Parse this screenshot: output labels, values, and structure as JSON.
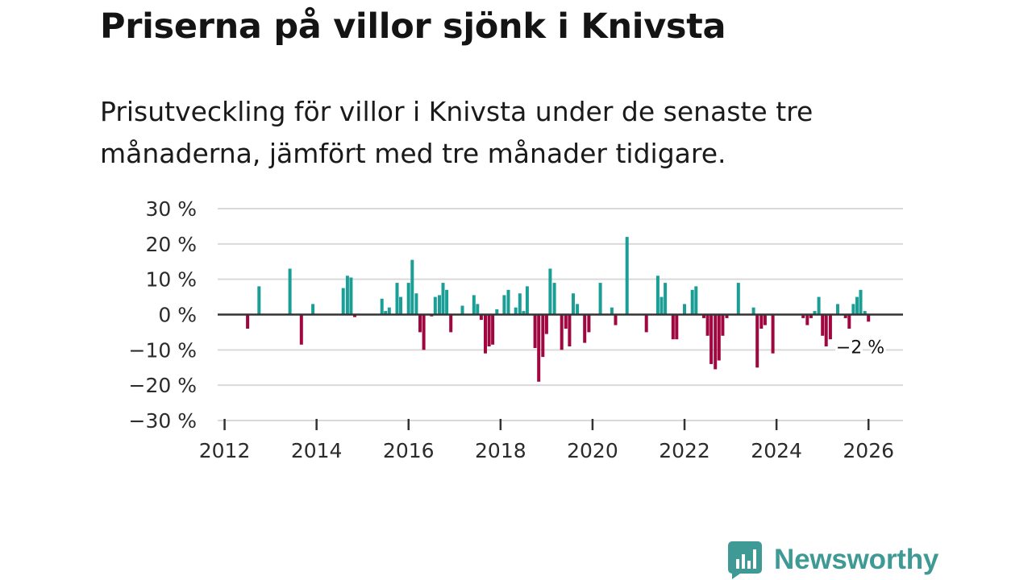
{
  "header": {
    "title": "Priserna på villor sjönk i Knivsta",
    "subtitle": "Prisutveckling för villor i Knivsta under de senaste tre månaderna, jämfört med tre månader tidigare."
  },
  "colors": {
    "positive": "#1a9e96",
    "negative": "#a0063f",
    "grid": "#d9d9d9",
    "zero_line": "#333333",
    "logo": "#3f9a96"
  },
  "logo": {
    "text": "Newsworthy",
    "icon": "chart-bubble-icon"
  },
  "chart_data": {
    "type": "bar",
    "title": "Priserna på villor sjönk i Knivsta",
    "xlabel": "",
    "ylabel": "",
    "ylim": [
      -30,
      30
    ],
    "xlim": [
      2011.85,
      2026.75
    ],
    "y_ticks": [
      30,
      20,
      10,
      0,
      -10,
      -20,
      -30
    ],
    "y_tick_labels": [
      "30 %",
      "20 %",
      "10 %",
      "0 %",
      "−10 %",
      "−20 %",
      "−30 %"
    ],
    "x_ticks": [
      2012,
      2014,
      2016,
      2018,
      2020,
      2022,
      2024,
      2026
    ],
    "x_tick_labels": [
      "2012",
      "2014",
      "2016",
      "2018",
      "2020",
      "2022",
      "2024",
      "2026"
    ],
    "grid": true,
    "last_value_label": "−2 %",
    "series": [
      {
        "name": "Prisutveckling",
        "points": [
          {
            "x": 2012.5,
            "y": -4
          },
          {
            "x": 2012.75,
            "y": 8
          },
          {
            "x": 2013.42,
            "y": 13
          },
          {
            "x": 2013.67,
            "y": -8.5
          },
          {
            "x": 2013.92,
            "y": 3
          },
          {
            "x": 2014.58,
            "y": 7.5
          },
          {
            "x": 2014.67,
            "y": 11
          },
          {
            "x": 2014.75,
            "y": 10.5
          },
          {
            "x": 2014.83,
            "y": -0.7
          },
          {
            "x": 2015.42,
            "y": 4.5
          },
          {
            "x": 2015.5,
            "y": 1
          },
          {
            "x": 2015.58,
            "y": 2
          },
          {
            "x": 2015.75,
            "y": 9
          },
          {
            "x": 2015.83,
            "y": 5
          },
          {
            "x": 2016.0,
            "y": 9
          },
          {
            "x": 2016.08,
            "y": 15.5
          },
          {
            "x": 2016.17,
            "y": 6
          },
          {
            "x": 2016.25,
            "y": -5
          },
          {
            "x": 2016.33,
            "y": -10
          },
          {
            "x": 2016.5,
            "y": -0.5
          },
          {
            "x": 2016.58,
            "y": 5
          },
          {
            "x": 2016.67,
            "y": 5.5
          },
          {
            "x": 2016.75,
            "y": 9
          },
          {
            "x": 2016.83,
            "y": 7
          },
          {
            "x": 2016.92,
            "y": -5
          },
          {
            "x": 2017.17,
            "y": 2.5
          },
          {
            "x": 2017.42,
            "y": 5.5
          },
          {
            "x": 2017.5,
            "y": 3
          },
          {
            "x": 2017.58,
            "y": -1.5
          },
          {
            "x": 2017.67,
            "y": -11
          },
          {
            "x": 2017.75,
            "y": -9
          },
          {
            "x": 2017.83,
            "y": -8.5
          },
          {
            "x": 2017.92,
            "y": 1.5
          },
          {
            "x": 2018.08,
            "y": 5.5
          },
          {
            "x": 2018.17,
            "y": 7
          },
          {
            "x": 2018.33,
            "y": 2
          },
          {
            "x": 2018.42,
            "y": 6
          },
          {
            "x": 2018.5,
            "y": 1
          },
          {
            "x": 2018.58,
            "y": 8
          },
          {
            "x": 2018.75,
            "y": -9.5
          },
          {
            "x": 2018.83,
            "y": -19
          },
          {
            "x": 2018.92,
            "y": -12
          },
          {
            "x": 2019.0,
            "y": -5.5
          },
          {
            "x": 2019.08,
            "y": 13
          },
          {
            "x": 2019.17,
            "y": 9
          },
          {
            "x": 2019.33,
            "y": -10
          },
          {
            "x": 2019.42,
            "y": -4
          },
          {
            "x": 2019.5,
            "y": -9
          },
          {
            "x": 2019.58,
            "y": 6
          },
          {
            "x": 2019.67,
            "y": 3
          },
          {
            "x": 2019.83,
            "y": -8
          },
          {
            "x": 2019.92,
            "y": -5
          },
          {
            "x": 2020.17,
            "y": 9
          },
          {
            "x": 2020.42,
            "y": 2
          },
          {
            "x": 2020.5,
            "y": -3
          },
          {
            "x": 2020.75,
            "y": 22
          },
          {
            "x": 2021.17,
            "y": -5
          },
          {
            "x": 2021.42,
            "y": 11
          },
          {
            "x": 2021.5,
            "y": 5
          },
          {
            "x": 2021.58,
            "y": 9
          },
          {
            "x": 2021.75,
            "y": -7
          },
          {
            "x": 2021.83,
            "y": -7
          },
          {
            "x": 2022.0,
            "y": 3
          },
          {
            "x": 2022.17,
            "y": 7
          },
          {
            "x": 2022.25,
            "y": 8
          },
          {
            "x": 2022.42,
            "y": -1
          },
          {
            "x": 2022.5,
            "y": -6
          },
          {
            "x": 2022.58,
            "y": -14
          },
          {
            "x": 2022.67,
            "y": -15.5
          },
          {
            "x": 2022.75,
            "y": -13
          },
          {
            "x": 2022.83,
            "y": -6
          },
          {
            "x": 2022.92,
            "y": -1
          },
          {
            "x": 2023.17,
            "y": 9
          },
          {
            "x": 2023.5,
            "y": 2
          },
          {
            "x": 2023.58,
            "y": -15
          },
          {
            "x": 2023.67,
            "y": -4
          },
          {
            "x": 2023.75,
            "y": -3
          },
          {
            "x": 2023.92,
            "y": -11
          },
          {
            "x": 2024.58,
            "y": -1
          },
          {
            "x": 2024.67,
            "y": -3
          },
          {
            "x": 2024.75,
            "y": -1
          },
          {
            "x": 2024.83,
            "y": 1
          },
          {
            "x": 2024.92,
            "y": 5
          },
          {
            "x": 2025.0,
            "y": -6
          },
          {
            "x": 2025.08,
            "y": -9
          },
          {
            "x": 2025.17,
            "y": -7
          },
          {
            "x": 2025.33,
            "y": 3
          },
          {
            "x": 2025.5,
            "y": -1
          },
          {
            "x": 2025.58,
            "y": -4
          },
          {
            "x": 2025.67,
            "y": 3
          },
          {
            "x": 2025.75,
            "y": 5
          },
          {
            "x": 2025.83,
            "y": 7
          },
          {
            "x": 2025.92,
            "y": 1
          },
          {
            "x": 2026.0,
            "y": -2
          }
        ]
      }
    ]
  }
}
